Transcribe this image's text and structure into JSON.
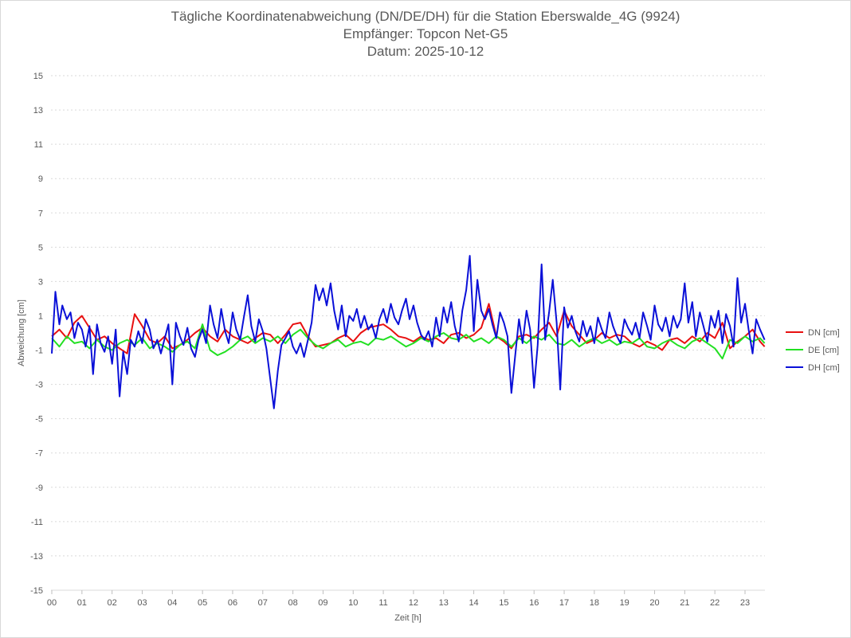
{
  "chart_data": {
    "type": "line",
    "title": "Tägliche Koordinatenabweichung (DN/DE/DH) für die Station Eberswalde_4G (9924)",
    "subtitle_1": "Empfänger: Topcon Net-G5",
    "subtitle_2": "Datum: 2025-10-12",
    "xlabel": "Zeit [h]",
    "ylabel": "Abweichung [cm]",
    "ylim": [
      -15,
      15
    ],
    "xlim": [
      0,
      24
    ],
    "yticks": [
      "15",
      "13",
      "11",
      "9",
      "7",
      "5",
      "3",
      "1",
      "-1",
      "-3",
      "-5",
      "-7",
      "-9",
      "-11",
      "-13",
      "-15"
    ],
    "xticks": [
      "00",
      "01",
      "02",
      "03",
      "04",
      "05",
      "06",
      "07",
      "08",
      "09",
      "10",
      "11",
      "12",
      "13",
      "14",
      "15",
      "16",
      "17",
      "18",
      "19",
      "20",
      "21",
      "22",
      "23"
    ],
    "grid": "horizontal-dotted",
    "legend_position": "right",
    "series": [
      {
        "name": "DN [cm]",
        "color": "#e81010",
        "x": [
          0.0,
          0.25,
          0.5,
          0.75,
          1.0,
          1.25,
          1.5,
          1.75,
          2.0,
          2.25,
          2.5,
          2.75,
          3.0,
          3.25,
          3.5,
          3.75,
          4.0,
          4.25,
          4.5,
          4.75,
          5.0,
          5.25,
          5.5,
          5.75,
          6.0,
          6.25,
          6.5,
          6.75,
          7.0,
          7.25,
          7.5,
          7.75,
          8.0,
          8.25,
          8.5,
          8.75,
          9.0,
          9.25,
          9.5,
          9.75,
          10.0,
          10.25,
          10.5,
          10.75,
          11.0,
          11.25,
          11.5,
          11.75,
          12.0,
          12.25,
          12.5,
          12.75,
          13.0,
          13.25,
          13.5,
          13.75,
          14.0,
          14.25,
          14.5,
          14.75,
          15.0,
          15.25,
          15.5,
          15.75,
          16.0,
          16.25,
          16.5,
          16.75,
          17.0,
          17.25,
          17.5,
          17.75,
          18.0,
          18.25,
          18.5,
          18.75,
          19.0,
          19.25,
          19.5,
          19.75,
          20.0,
          20.25,
          20.5,
          20.75,
          21.0,
          21.25,
          21.5,
          21.75,
          22.0,
          22.25,
          22.5,
          22.75,
          23.0,
          23.25,
          23.5,
          23.65
        ],
        "values": [
          -0.2,
          0.2,
          -0.3,
          0.6,
          1.0,
          0.3,
          -0.4,
          -0.2,
          -0.6,
          -0.9,
          -1.2,
          1.1,
          0.4,
          -0.4,
          -0.6,
          -0.2,
          -0.9,
          -0.7,
          -0.4,
          0.0,
          0.3,
          -0.2,
          -0.5,
          0.2,
          -0.2,
          -0.4,
          -0.6,
          -0.3,
          0.0,
          -0.1,
          -0.6,
          -0.1,
          0.5,
          0.6,
          -0.2,
          -0.8,
          -0.7,
          -0.6,
          -0.3,
          -0.1,
          -0.5,
          0.0,
          0.3,
          0.4,
          0.5,
          0.2,
          -0.2,
          -0.3,
          -0.5,
          -0.2,
          -0.4,
          -0.3,
          -0.6,
          -0.1,
          0.0,
          -0.3,
          -0.1,
          0.3,
          1.7,
          -0.2,
          -0.5,
          -0.9,
          -0.2,
          -0.1,
          -0.3,
          0.2,
          0.6,
          -0.2,
          1.3,
          0.4,
          -0.1,
          -0.6,
          -0.4,
          0.0,
          -0.3,
          -0.1,
          -0.2,
          -0.6,
          -0.8,
          -0.5,
          -0.7,
          -1.0,
          -0.4,
          -0.3,
          -0.6,
          -0.2,
          -0.5,
          0.0,
          -0.3,
          0.6,
          -0.9,
          -0.5,
          -0.2,
          0.2,
          -0.5,
          -0.8
        ]
      },
      {
        "name": "DE [cm]",
        "color": "#22e022",
        "x": [
          0.0,
          0.25,
          0.5,
          0.75,
          1.0,
          1.25,
          1.5,
          1.75,
          2.0,
          2.25,
          2.5,
          2.75,
          3.0,
          3.25,
          3.5,
          3.75,
          4.0,
          4.25,
          4.5,
          4.75,
          5.0,
          5.25,
          5.5,
          5.75,
          6.0,
          6.25,
          6.5,
          6.75,
          7.0,
          7.25,
          7.5,
          7.75,
          8.0,
          8.25,
          8.5,
          8.75,
          9.0,
          9.25,
          9.5,
          9.75,
          10.0,
          10.25,
          10.5,
          10.75,
          11.0,
          11.25,
          11.5,
          11.75,
          12.0,
          12.25,
          12.5,
          12.75,
          13.0,
          13.25,
          13.5,
          13.75,
          14.0,
          14.25,
          14.5,
          14.75,
          15.0,
          15.25,
          15.5,
          15.75,
          16.0,
          16.25,
          16.5,
          16.75,
          17.0,
          17.25,
          17.5,
          17.75,
          18.0,
          18.25,
          18.5,
          18.75,
          19.0,
          19.25,
          19.5,
          19.75,
          20.0,
          20.25,
          20.5,
          20.75,
          21.0,
          21.25,
          21.5,
          21.75,
          22.0,
          22.25,
          22.5,
          22.75,
          23.0,
          23.25,
          23.5,
          23.65
        ],
        "values": [
          -0.3,
          -0.8,
          -0.2,
          -0.6,
          -0.5,
          -0.9,
          -0.4,
          -0.8,
          -1.0,
          -0.6,
          -0.4,
          -0.7,
          -0.3,
          -0.9,
          -0.6,
          -0.8,
          -1.1,
          -0.7,
          -0.5,
          -0.9,
          0.5,
          -1.0,
          -1.3,
          -1.1,
          -0.8,
          -0.4,
          -0.2,
          -0.6,
          -0.3,
          -0.5,
          -0.2,
          -0.6,
          -0.1,
          0.2,
          -0.3,
          -0.7,
          -0.9,
          -0.6,
          -0.4,
          -0.8,
          -0.6,
          -0.5,
          -0.7,
          -0.3,
          -0.4,
          -0.2,
          -0.5,
          -0.8,
          -0.6,
          -0.3,
          -0.5,
          -0.2,
          0.0,
          -0.3,
          -0.4,
          -0.1,
          -0.5,
          -0.3,
          -0.6,
          -0.2,
          -0.4,
          -0.8,
          -0.3,
          -0.6,
          -0.2,
          -0.4,
          -0.1,
          -0.6,
          -0.7,
          -0.4,
          -0.8,
          -0.5,
          -0.3,
          -0.6,
          -0.4,
          -0.7,
          -0.5,
          -0.6,
          -0.3,
          -0.8,
          -0.9,
          -0.6,
          -0.4,
          -0.7,
          -0.9,
          -0.5,
          -0.3,
          -0.6,
          -0.9,
          -1.5,
          -0.4,
          -0.6,
          -0.2,
          -0.5,
          -0.3,
          -0.6
        ]
      },
      {
        "name": "DH [cm]",
        "color": "#0a10d8",
        "x": [
          0.0,
          0.12,
          0.25,
          0.35,
          0.5,
          0.62,
          0.75,
          0.87,
          1.0,
          1.12,
          1.25,
          1.37,
          1.5,
          1.62,
          1.75,
          1.87,
          2.0,
          2.12,
          2.25,
          2.37,
          2.5,
          2.62,
          2.75,
          2.87,
          3.0,
          3.12,
          3.25,
          3.37,
          3.5,
          3.62,
          3.75,
          3.87,
          4.0,
          4.12,
          4.25,
          4.37,
          4.5,
          4.62,
          4.75,
          4.87,
          5.0,
          5.12,
          5.25,
          5.37,
          5.5,
          5.62,
          5.75,
          5.87,
          6.0,
          6.12,
          6.25,
          6.37,
          6.5,
          6.62,
          6.75,
          6.87,
          7.0,
          7.12,
          7.25,
          7.37,
          7.5,
          7.62,
          7.75,
          7.87,
          8.0,
          8.12,
          8.25,
          8.37,
          8.5,
          8.62,
          8.75,
          8.87,
          9.0,
          9.12,
          9.25,
          9.37,
          9.5,
          9.62,
          9.75,
          9.87,
          10.0,
          10.12,
          10.25,
          10.37,
          10.5,
          10.62,
          10.75,
          10.87,
          11.0,
          11.12,
          11.25,
          11.37,
          11.5,
          11.62,
          11.75,
          11.87,
          12.0,
          12.12,
          12.25,
          12.37,
          12.5,
          12.62,
          12.75,
          12.87,
          13.0,
          13.12,
          13.25,
          13.37,
          13.5,
          13.62,
          13.75,
          13.87,
          14.0,
          14.12,
          14.25,
          14.37,
          14.5,
          14.62,
          14.75,
          14.87,
          15.0,
          15.12,
          15.25,
          15.37,
          15.5,
          15.62,
          15.75,
          15.87,
          16.0,
          16.12,
          16.25,
          16.37,
          16.5,
          16.62,
          16.75,
          16.87,
          17.0,
          17.12,
          17.25,
          17.37,
          17.5,
          17.62,
          17.75,
          17.87,
          18.0,
          18.12,
          18.25,
          18.37,
          18.5,
          18.62,
          18.75,
          18.87,
          19.0,
          19.12,
          19.25,
          19.37,
          19.5,
          19.62,
          19.75,
          19.87,
          20.0,
          20.12,
          20.25,
          20.37,
          20.5,
          20.62,
          20.75,
          20.87,
          21.0,
          21.12,
          21.25,
          21.37,
          21.5,
          21.62,
          21.75,
          21.87,
          22.0,
          22.12,
          22.25,
          22.37,
          22.5,
          22.62,
          22.75,
          22.87,
          23.0,
          23.12,
          23.25,
          23.37,
          23.5,
          23.65
        ],
        "values": [
          -1.2,
          2.4,
          0.5,
          1.6,
          0.8,
          1.2,
          -0.3,
          0.6,
          0.2,
          -0.8,
          0.4,
          -2.4,
          0.5,
          -0.6,
          -1.1,
          -0.2,
          -1.8,
          0.2,
          -3.7,
          -1.1,
          -2.4,
          -0.4,
          -0.8,
          0.1,
          -0.6,
          0.8,
          0.2,
          -0.9,
          -0.4,
          -1.2,
          -0.3,
          0.5,
          -3.0,
          0.6,
          -0.2,
          -0.7,
          0.3,
          -0.9,
          -1.4,
          -0.4,
          0.2,
          -0.6,
          1.6,
          0.5,
          -0.3,
          1.4,
          0.1,
          -0.6,
          1.2,
          0.2,
          -0.4,
          0.9,
          2.2,
          0.4,
          -0.5,
          0.8,
          0.1,
          -0.9,
          -2.7,
          -4.4,
          -2.2,
          -0.7,
          -0.3,
          0.1,
          -0.8,
          -1.2,
          -0.6,
          -1.4,
          -0.4,
          0.6,
          2.8,
          1.9,
          2.6,
          1.6,
          2.9,
          1.3,
          0.2,
          1.6,
          -0.2,
          1.0,
          0.7,
          1.4,
          0.3,
          1.0,
          0.2,
          0.5,
          -0.3,
          0.8,
          1.4,
          0.6,
          1.7,
          0.9,
          0.5,
          1.3,
          2.0,
          0.8,
          1.6,
          0.6,
          -0.1,
          -0.4,
          0.1,
          -0.8,
          0.9,
          -0.2,
          1.5,
          0.6,
          1.8,
          0.4,
          -0.5,
          1.3,
          2.5,
          4.5,
          0.1,
          3.1,
          1.3,
          0.8,
          1.4,
          0.5,
          -0.3,
          1.2,
          0.6,
          -0.2,
          -3.5,
          -1.4,
          0.8,
          -0.6,
          1.3,
          0.2,
          -3.2,
          -0.7,
          4.0,
          -0.4,
          1.2,
          3.1,
          0.6,
          -3.3,
          1.5,
          0.3,
          1.0,
          0.1,
          -0.5,
          0.7,
          -0.2,
          0.4,
          -0.6,
          0.9,
          0.2,
          -0.3,
          1.2,
          0.4,
          -0.2,
          -0.6,
          0.8,
          0.3,
          -0.1,
          0.6,
          -0.3,
          1.2,
          0.4,
          -0.4,
          1.6,
          0.5,
          0.1,
          0.9,
          -0.2,
          1.0,
          0.3,
          0.8,
          2.9,
          0.6,
          1.8,
          -0.2,
          1.2,
          0.4,
          -0.5,
          1.0,
          0.3,
          1.3,
          -0.6,
          1.1,
          0.4,
          -0.8,
          3.2,
          0.6,
          1.7,
          0.2,
          -1.2,
          0.8,
          0.2,
          -0.4
        ]
      }
    ]
  }
}
